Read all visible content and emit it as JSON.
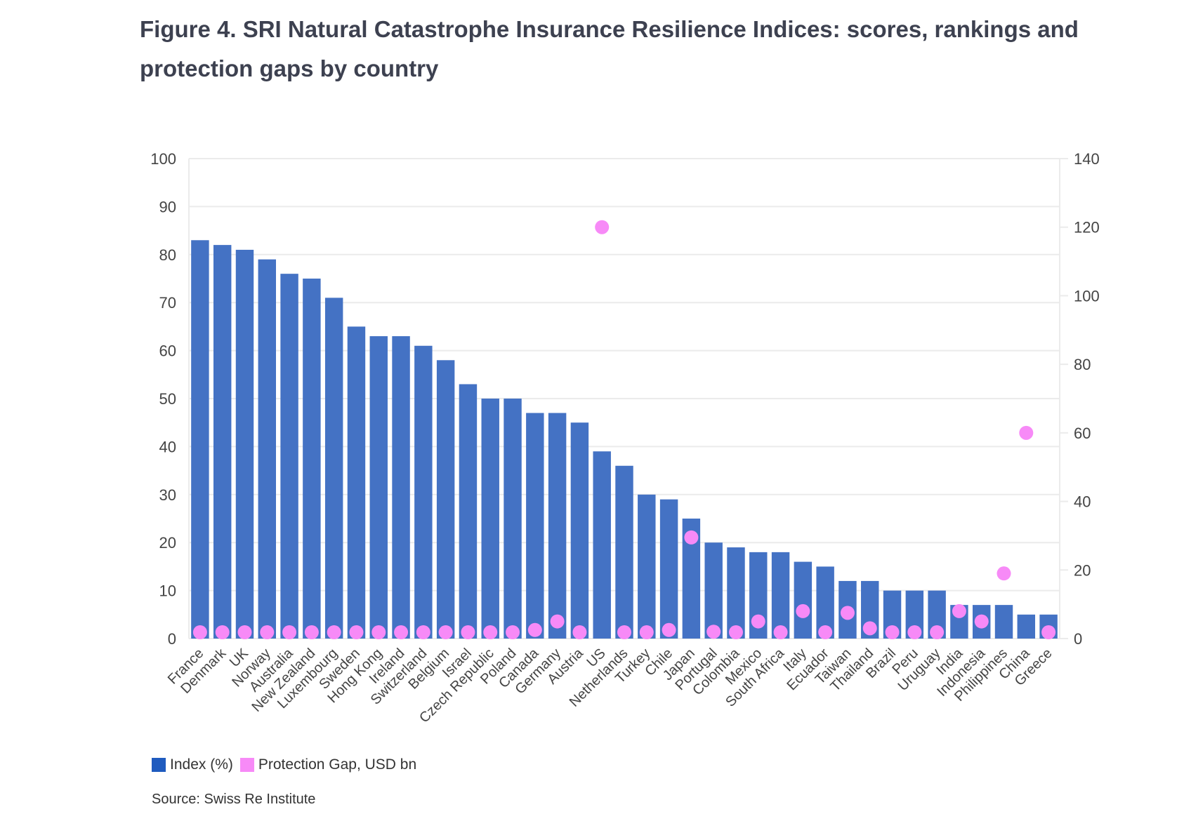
{
  "title": "Figure 4. SRI Natural Catastrophe Insurance Resilience Indices: scores, rankings and protection gaps by country",
  "source": "Source: Swiss Re Institute",
  "colors": {
    "index": "#4472c4",
    "index_legend": "#1f5bbf",
    "gap": "#f78af7",
    "grid": "#ebebeb",
    "text": "#3d4150"
  },
  "chart_data": {
    "type": "bar",
    "categories": [
      "France",
      "Denmark",
      "UK",
      "Norway",
      "Australia",
      "New Zealand",
      "Luxembourg",
      "Sweden",
      "Hong Kong",
      "Ireland",
      "Switzerland",
      "Belgium",
      "Israel",
      "Czech Republic",
      "Poland",
      "Canada",
      "Germany",
      "Austria",
      "US",
      "Netherlands",
      "Turkey",
      "Chile",
      "Japan",
      "Portugal",
      "Colombia",
      "Mexico",
      "South Africa",
      "Italy",
      "Ecuador",
      "Taiwan",
      "Thailand",
      "Brazil",
      "Peru",
      "Uruguay",
      "India",
      "Indonesia",
      "Philippines",
      "China",
      "Greece"
    ],
    "series": [
      {
        "name": "Index (%)",
        "type": "bar",
        "axis": "left",
        "values": [
          83,
          82,
          81,
          79,
          76,
          75,
          71,
          65,
          63,
          63,
          61,
          58,
          53,
          50,
          50,
          47,
          47,
          45,
          39,
          36,
          30,
          29,
          25,
          20,
          19,
          18,
          18,
          16,
          15,
          12,
          12,
          10,
          10,
          10,
          7,
          7,
          7,
          5,
          5
        ]
      },
      {
        "name": "Protection Gap, USD bn",
        "type": "scatter",
        "axis": "right",
        "values": [
          1,
          0.3,
          1,
          0.3,
          1.5,
          0.5,
          0.1,
          0.2,
          0.2,
          0.2,
          1.5,
          1,
          0.5,
          0.3,
          0.5,
          2.5,
          5,
          1.5,
          120,
          1.5,
          1.5,
          2.5,
          29.5,
          2,
          0.7,
          5,
          0.5,
          8,
          0.3,
          7.5,
          3,
          1,
          1,
          0.3,
          8,
          5,
          19,
          60,
          1
        ]
      }
    ],
    "y_left": {
      "range": [
        0,
        100
      ],
      "ticks": [
        "0",
        "10",
        "20",
        "30",
        "40",
        "50",
        "60",
        "70",
        "80",
        "90",
        "100"
      ]
    },
    "y_right": {
      "range": [
        0,
        140
      ],
      "ticks": [
        "0",
        "20",
        "40",
        "60",
        "80",
        "100",
        "120",
        "140"
      ]
    },
    "grid": true,
    "legend": "bottom-left"
  }
}
